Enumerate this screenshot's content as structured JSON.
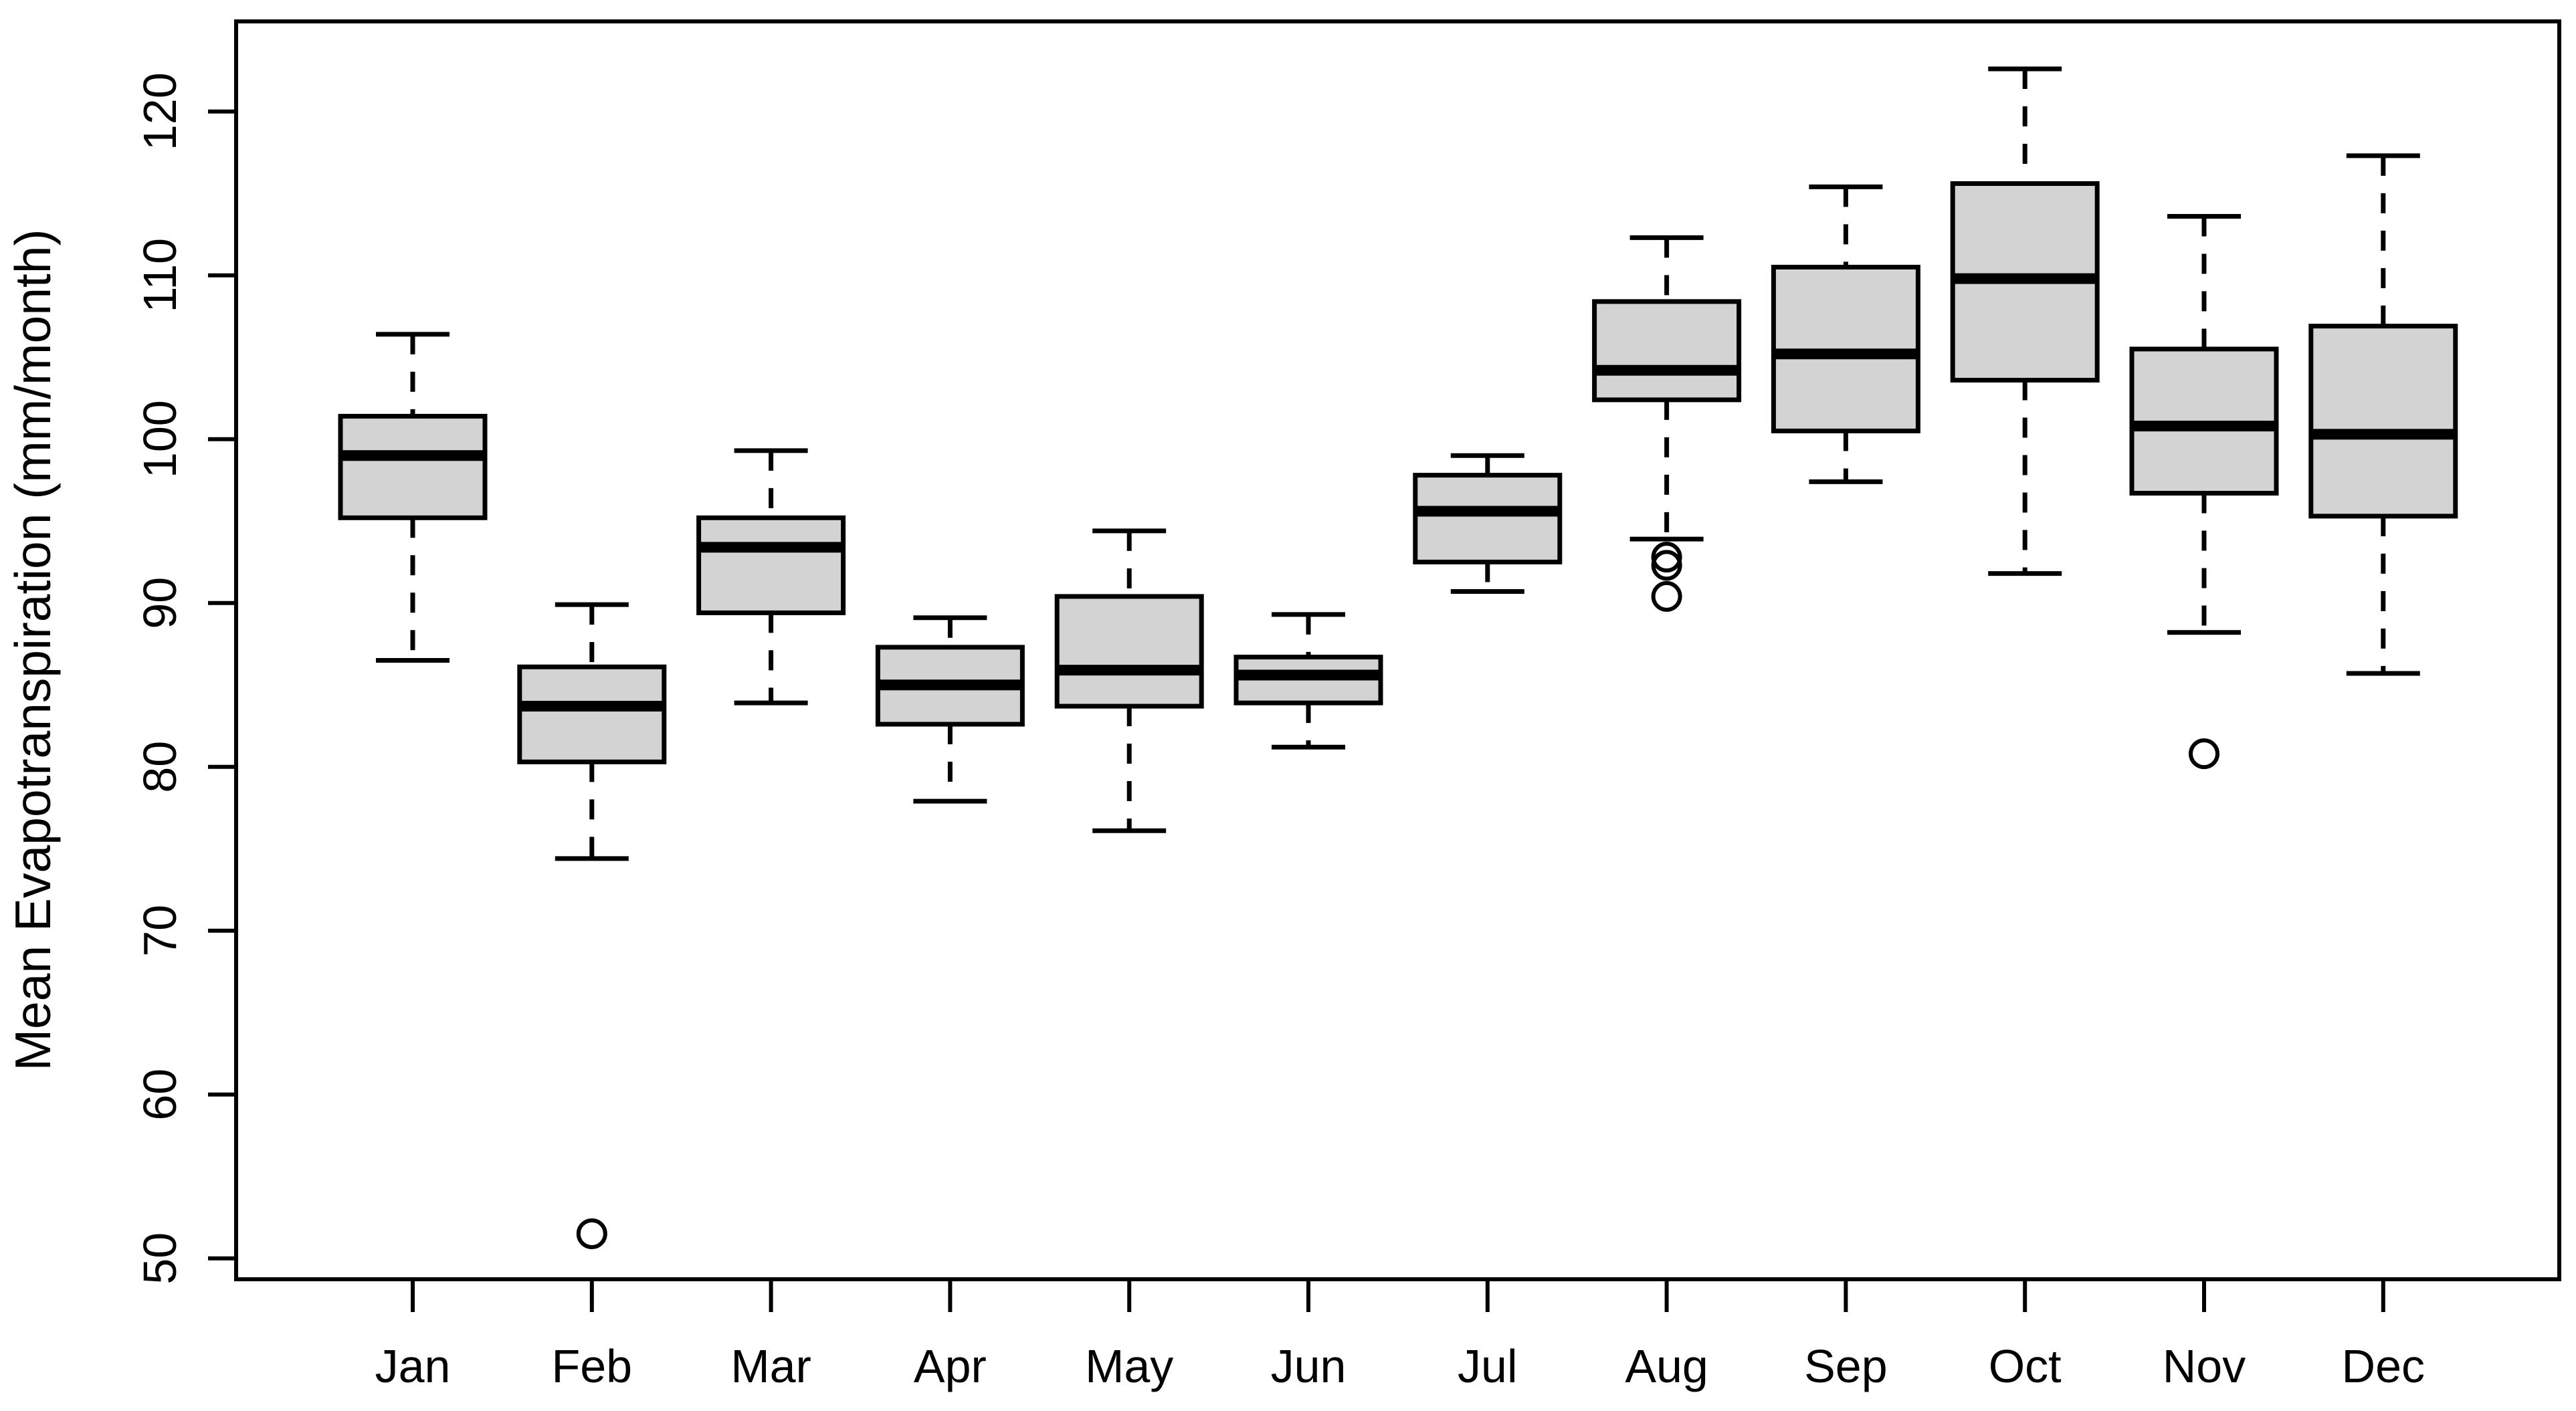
{
  "chart_data": {
    "type": "boxplot",
    "title": "",
    "xlabel": "",
    "ylabel": "Mean Evapotranspiration (mm/month)",
    "ylim": [
      48.7,
      125.5
    ],
    "yticks": [
      50,
      60,
      70,
      80,
      90,
      100,
      110,
      120
    ],
    "grid": false,
    "legend": "none",
    "categories": [
      "Jan",
      "Feb",
      "Mar",
      "Apr",
      "May",
      "Jun",
      "Jul",
      "Aug",
      "Sep",
      "Oct",
      "Nov",
      "Dec"
    ],
    "series": [
      {
        "name": "Jan",
        "whisker_low": 86.5,
        "q1": 95.2,
        "median": 99.0,
        "q3": 101.4,
        "whisker_high": 106.4,
        "outliers": []
      },
      {
        "name": "Feb",
        "whisker_low": 74.4,
        "q1": 80.3,
        "median": 83.7,
        "q3": 86.1,
        "whisker_high": 89.9,
        "outliers": [
          51.5
        ]
      },
      {
        "name": "Mar",
        "whisker_low": 83.9,
        "q1": 89.4,
        "median": 93.4,
        "q3": 95.2,
        "whisker_high": 99.3,
        "outliers": []
      },
      {
        "name": "Apr",
        "whisker_low": 77.9,
        "q1": 82.6,
        "median": 85.0,
        "q3": 87.3,
        "whisker_high": 89.1,
        "outliers": []
      },
      {
        "name": "May",
        "whisker_low": 76.1,
        "q1": 83.7,
        "median": 85.9,
        "q3": 90.4,
        "whisker_high": 94.4,
        "outliers": []
      },
      {
        "name": "Jun",
        "whisker_low": 81.2,
        "q1": 83.9,
        "median": 85.6,
        "q3": 86.7,
        "whisker_high": 89.3,
        "outliers": []
      },
      {
        "name": "Jul",
        "whisker_low": 90.7,
        "q1": 92.5,
        "median": 95.6,
        "q3": 97.8,
        "whisker_high": 99.0,
        "outliers": []
      },
      {
        "name": "Aug",
        "whisker_low": 93.9,
        "q1": 102.4,
        "median": 104.2,
        "q3": 108.4,
        "whisker_high": 112.3,
        "outliers": [
          92.8,
          92.3,
          90.4
        ]
      },
      {
        "name": "Sep",
        "whisker_low": 97.4,
        "q1": 100.5,
        "median": 105.2,
        "q3": 110.5,
        "whisker_high": 115.4,
        "outliers": []
      },
      {
        "name": "Oct",
        "whisker_low": 91.8,
        "q1": 103.6,
        "median": 109.8,
        "q3": 115.6,
        "whisker_high": 122.6,
        "outliers": []
      },
      {
        "name": "Nov",
        "whisker_low": 88.2,
        "q1": 96.7,
        "median": 100.8,
        "q3": 105.5,
        "whisker_high": 113.6,
        "outliers": [
          80.8
        ]
      },
      {
        "name": "Dec",
        "whisker_low": 85.7,
        "q1": 95.3,
        "median": 100.3,
        "q3": 106.9,
        "whisker_high": 117.3,
        "outliers": []
      }
    ],
    "colors": {
      "box_fill": "#D3D3D3",
      "box_stroke": "#000000",
      "median_stroke": "#000000",
      "whisker_stroke": "#000000",
      "axis_stroke": "#000000",
      "background": "#FFFFFF"
    }
  }
}
